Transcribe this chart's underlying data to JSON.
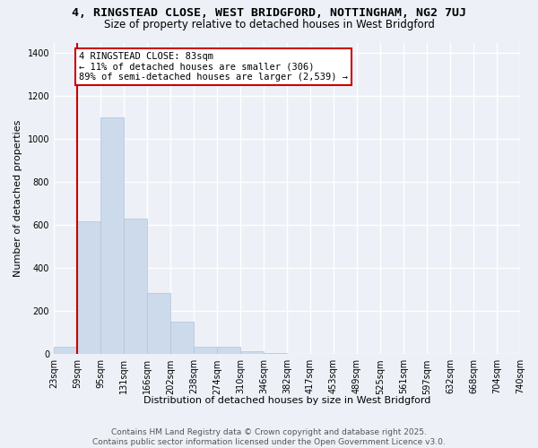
{
  "title1": "4, RINGSTEAD CLOSE, WEST BRIDGFORD, NOTTINGHAM, NG2 7UJ",
  "title2": "Size of property relative to detached houses in West Bridgford",
  "xlabel": "Distribution of detached houses by size in West Bridgford",
  "ylabel": "Number of detached properties",
  "footer1": "Contains HM Land Registry data © Crown copyright and database right 2025.",
  "footer2": "Contains public sector information licensed under the Open Government Licence v3.0.",
  "bins": [
    "23sqm",
    "59sqm",
    "95sqm",
    "131sqm",
    "166sqm",
    "202sqm",
    "238sqm",
    "274sqm",
    "310sqm",
    "346sqm",
    "382sqm",
    "417sqm",
    "453sqm",
    "489sqm",
    "525sqm",
    "561sqm",
    "597sqm",
    "632sqm",
    "668sqm",
    "704sqm",
    "740sqm"
  ],
  "values": [
    35,
    620,
    1100,
    630,
    285,
    150,
    35,
    35,
    15,
    5,
    0,
    0,
    0,
    0,
    0,
    0,
    0,
    0,
    0,
    0
  ],
  "bar_color": "#ccdaeb",
  "bar_edge_color": "#adc4dc",
  "vline_color": "#cc0000",
  "annotation_text": "4 RINGSTEAD CLOSE: 83sqm\n← 11% of detached houses are smaller (306)\n89% of semi-detached houses are larger (2,539) →",
  "ylim_max": 1450,
  "yticks": [
    0,
    200,
    400,
    600,
    800,
    1000,
    1200,
    1400
  ],
  "bg_color": "#edf1f7",
  "grid_color": "#ffffff",
  "title1_fontsize": 9.5,
  "title2_fontsize": 8.5,
  "axis_label_fontsize": 8.0,
  "tick_fontsize": 7.0,
  "footer_fontsize": 6.5,
  "annot_fontsize": 7.5,
  "vline_x_data": 1.0
}
